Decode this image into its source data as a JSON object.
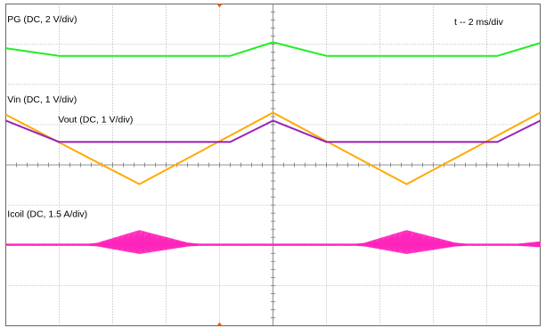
{
  "chart_data": {
    "type": "line",
    "x_divisions": 10,
    "y_divisions": 8,
    "grid": true,
    "timebase_label": "t -- 2 ms/div",
    "x_range_div": [
      0,
      10
    ],
    "y_range_div": [
      -4,
      4
    ],
    "trigger_marker_x_div": 4,
    "series": [
      {
        "name": "PG (DC, 2 V/div)",
        "color": "#22ee22",
        "style": "line",
        "points": [
          [
            0,
            2.9
          ],
          [
            1.0,
            2.71
          ],
          [
            4.2,
            2.71
          ],
          [
            5.0,
            3.05
          ],
          [
            6.0,
            2.71
          ],
          [
            9.2,
            2.71
          ],
          [
            10,
            3.03
          ]
        ],
        "label_pos": [
          0.03,
          3.55
        ]
      },
      {
        "name": "Vin (DC, 1 V/div)",
        "color": "#ffaa00",
        "style": "line",
        "points": [
          [
            0,
            1.25
          ],
          [
            2.5,
            -0.48
          ],
          [
            5.0,
            1.3
          ],
          [
            7.5,
            -0.48
          ],
          [
            10,
            1.3
          ]
        ],
        "label_pos": [
          0.03,
          1.55
        ]
      },
      {
        "name": "Vout (DC, 1 V/div)",
        "color": "#9922bb",
        "style": "line",
        "points": [
          [
            0,
            1.1
          ],
          [
            1.0,
            0.57
          ],
          [
            4.2,
            0.57
          ],
          [
            5.0,
            1.1
          ],
          [
            6.0,
            0.57
          ],
          [
            9.2,
            0.57
          ],
          [
            10,
            1.1
          ]
        ],
        "label_pos": [
          0.98,
          1.05
        ]
      },
      {
        "name": "Icoil (DC, 1.5 A/div)",
        "color": "#ff22bb",
        "style": "band",
        "baseline": -1.98,
        "noise_amp": 0.02,
        "envelope": [
          [
            0,
            0
          ],
          [
            1.0,
            -0.05
          ],
          [
            1.7,
            0.04
          ],
          [
            2.5,
            0.36
          ],
          [
            3.4,
            0.05
          ],
          [
            4.1,
            -0.05
          ],
          [
            5.0,
            0
          ],
          [
            6.0,
            -0.05
          ],
          [
            6.7,
            0.04
          ],
          [
            7.5,
            0.36
          ],
          [
            8.4,
            0.05
          ],
          [
            9.1,
            -0.05
          ],
          [
            10,
            0.08
          ]
        ],
        "label_pos": [
          0.03,
          -1.3
        ]
      }
    ]
  }
}
